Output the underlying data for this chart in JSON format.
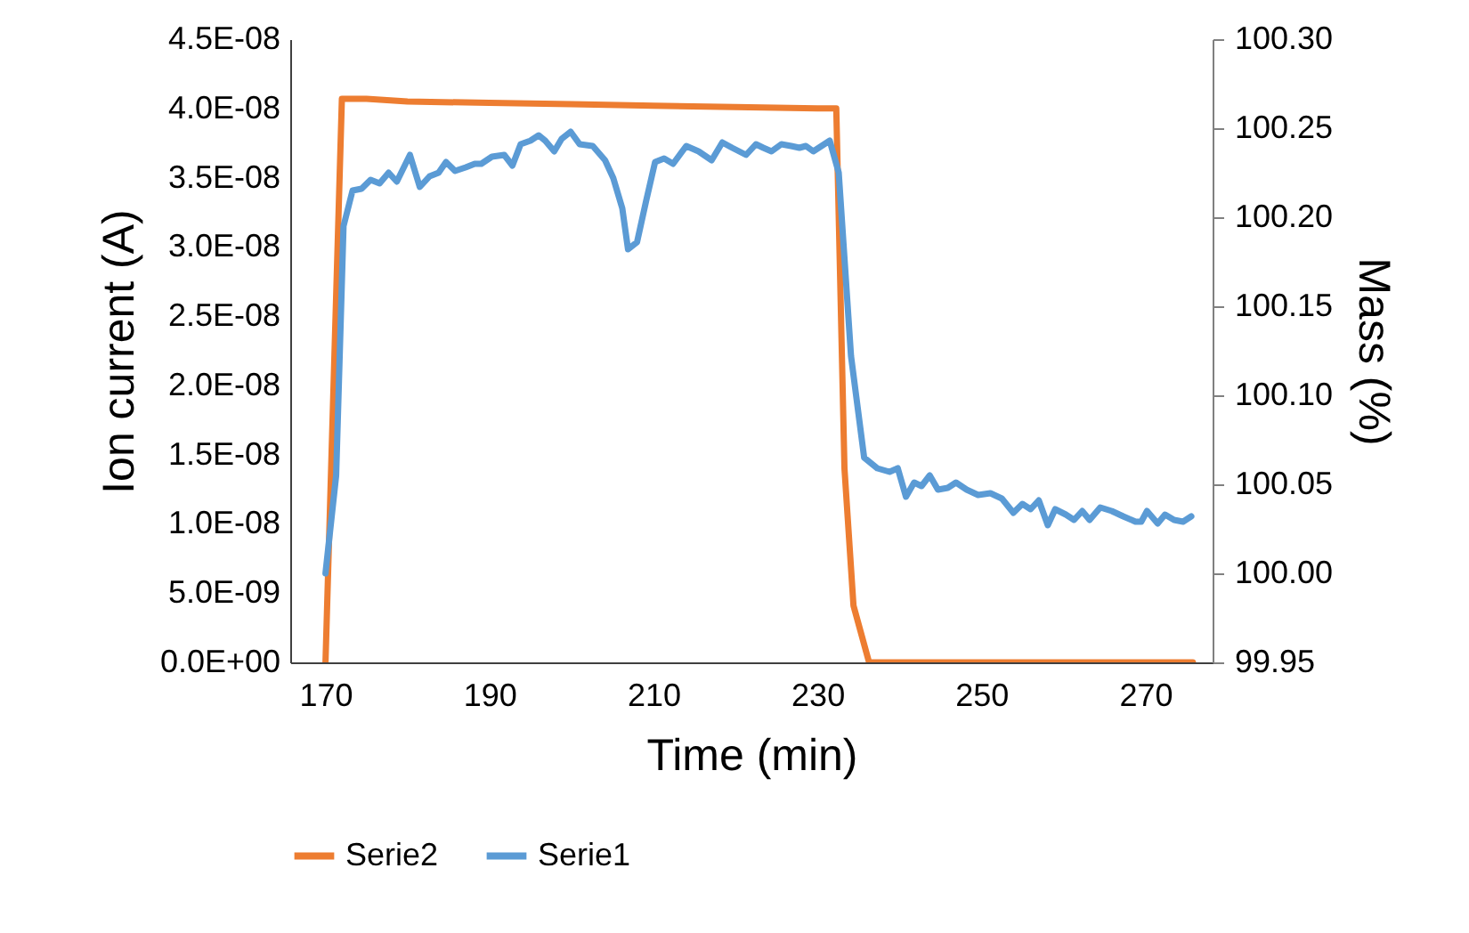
{
  "chart_data": {
    "type": "line",
    "xlabel": "Time (min)",
    "ylabel": "Ion current (A)",
    "y2label": "Mass (%)",
    "legend": "bottom",
    "xlim": [
      165.7,
      278.2
    ],
    "xticks": [
      170,
      190,
      210,
      230,
      250,
      270
    ],
    "ylim": [
      0,
      4.5e-08
    ],
    "yticks": [
      {
        "value": 0,
        "label": "0.0E+00"
      },
      {
        "value": 5e-09,
        "label": "5.0E-09"
      },
      {
        "value": 1e-08,
        "label": "1.0E-08"
      },
      {
        "value": 1.5e-08,
        "label": "1.5E-08"
      },
      {
        "value": 2e-08,
        "label": "2.0E-08"
      },
      {
        "value": 2.5e-08,
        "label": "2.5E-08"
      },
      {
        "value": 3e-08,
        "label": "3.0E-08"
      },
      {
        "value": 3.5e-08,
        "label": "3.5E-08"
      },
      {
        "value": 4e-08,
        "label": "4.0E-08"
      },
      {
        "value": 4.5e-08,
        "label": "4.5E-08"
      }
    ],
    "y2lim": [
      99.95,
      100.3
    ],
    "y2ticks": [
      {
        "value": 99.95,
        "label": "99.95"
      },
      {
        "value": 100,
        "label": "100.00"
      },
      {
        "value": 100.05,
        "label": "100.05"
      },
      {
        "value": 100.1,
        "label": "100.10"
      },
      {
        "value": 100.15,
        "label": "100.15"
      },
      {
        "value": 100.2,
        "label": "100.20"
      },
      {
        "value": 100.25,
        "label": "100.25"
      },
      {
        "value": 100.3,
        "label": "100.30"
      }
    ],
    "series": [
      {
        "name": "Serie2",
        "color": "#ed7d31",
        "x": [
          170.0,
          172.0,
          175,
          180,
          190,
          200,
          210,
          220,
          230,
          232.3,
          233.3,
          234.4,
          236.3,
          245,
          255,
          265,
          275.8
        ],
        "values": [
          0,
          4.07e-08,
          4.07e-08,
          4.05e-08,
          4.04e-08,
          4.03e-08,
          4.02e-08,
          4.01e-08,
          4e-08,
          4e-08,
          1.4e-08,
          4.1e-09,
          0,
          0,
          0,
          0,
          0
        ]
      },
      {
        "name": "Serie1",
        "color": "#5b9bd5",
        "axis": "y2",
        "x": [
          170.0,
          171.3,
          172.2,
          173.3,
          174.4,
          175.5,
          176.6,
          177.7,
          178.7,
          180.3,
          181.5,
          182.7,
          183.8,
          184.7,
          185.8,
          187.1,
          188.2,
          189.0,
          190.3,
          191.8,
          192.8,
          193.8,
          195.0,
          196.0,
          196.8,
          197.9,
          198.8,
          199.9,
          201.0,
          202.6,
          204.1,
          205.1,
          206.2,
          206.9,
          208.0,
          209.1,
          210.2,
          211.3,
          212.4,
          214.0,
          215.5,
          217.1,
          218.4,
          219.6,
          221.3,
          222.5,
          223.4,
          224.4,
          225.6,
          226.8,
          227.8,
          228.6,
          229.5,
          230.5,
          231.5,
          232.6,
          234.1,
          235.7,
          237.3,
          238.8,
          239.8,
          240.8,
          241.8,
          242.7,
          243.7,
          244.7,
          245.9,
          246.9,
          248.2,
          249.6,
          251.1,
          252.5,
          253.9,
          255.0,
          256.0,
          257.0,
          258.1,
          259.0,
          260.3,
          261.3,
          262.3,
          263.2,
          264.5,
          265.9,
          267.3,
          268.8,
          269.5,
          270.2,
          271.5,
          272.4,
          273.5,
          274.6,
          275.6
        ],
        "values": [
          100.0,
          100.055,
          100.195,
          100.215,
          100.216,
          100.221,
          100.219,
          100.225,
          100.22,
          100.235,
          100.217,
          100.223,
          100.225,
          100.231,
          100.226,
          100.228,
          100.23,
          100.23,
          100.234,
          100.235,
          100.229,
          100.241,
          100.243,
          100.246,
          100.243,
          100.237,
          100.244,
          100.248,
          100.241,
          100.24,
          100.232,
          100.222,
          100.205,
          100.182,
          100.186,
          100.209,
          100.231,
          100.233,
          100.23,
          100.24,
          100.237,
          100.232,
          100.242,
          100.239,
          100.235,
          100.241,
          100.239,
          100.237,
          100.241,
          100.24,
          100.239,
          100.24,
          100.237,
          100.24,
          100.243,
          100.225,
          100.122,
          100.065,
          100.059,
          100.057,
          100.059,
          100.043,
          100.051,
          100.049,
          100.055,
          100.047,
          100.048,
          100.051,
          100.047,
          100.044,
          100.045,
          100.042,
          100.034,
          100.039,
          100.036,
          100.041,
          100.027,
          100.036,
          100.033,
          100.03,
          100.035,
          100.03,
          100.037,
          100.035,
          100.032,
          100.029,
          100.029,
          100.035,
          100.028,
          100.033,
          100.03,
          100.029,
          100.032
        ]
      }
    ]
  }
}
